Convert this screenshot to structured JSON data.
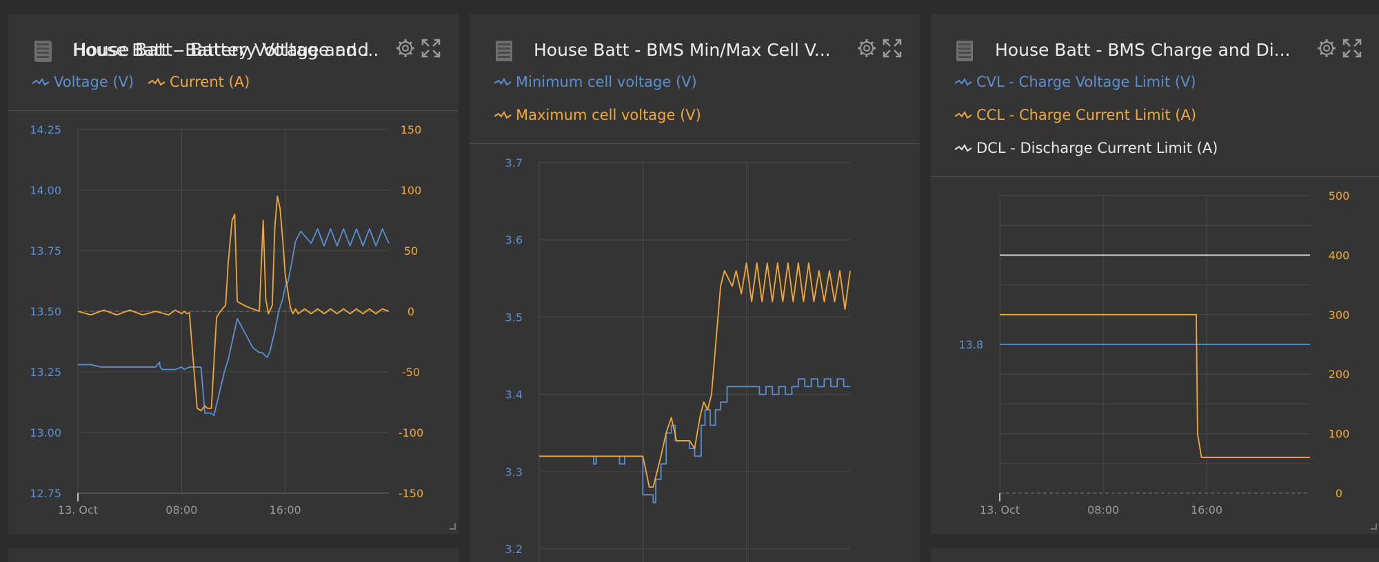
{
  "colors": {
    "blue": "#5b8fd1",
    "orange": "#f0a93a",
    "white": "#e8e8e8",
    "grid": "#4a4a4a",
    "axis_text": "#9a9a9a"
  },
  "panels": [
    {
      "title": "House Batt - Battery Voltage and ...",
      "icon": "battery-monitor-icon",
      "legend": [
        {
          "label": "Voltage (V)",
          "color": "#5b8fd1"
        },
        {
          "label": "Current (A)",
          "color": "#f0a93a"
        }
      ],
      "xticks": [
        "13. Oct",
        "08:00",
        "16:00"
      ],
      "yticks_left": [
        "14.25",
        "14.00",
        "13.75",
        "13.50",
        "13.25",
        "13.00",
        "12.75"
      ],
      "yticks_right": [
        "150",
        "100",
        "50",
        "0",
        "-50",
        "-100",
        "-150"
      ]
    },
    {
      "title": "House Batt - BMS Min/Max Cell V...",
      "icon": "battery-monitor-icon",
      "legend": [
        {
          "label": "Minimum cell voltage (V)",
          "color": "#5b8fd1"
        },
        {
          "label": "Maximum cell voltage (V)",
          "color": "#f0a93a"
        }
      ],
      "yticks_left": [
        "3.7",
        "3.6",
        "3.5",
        "3.4",
        "3.3",
        "3.2"
      ]
    },
    {
      "title": "House Batt - BMS Charge and Di...",
      "icon": "battery-monitor-icon",
      "legend": [
        {
          "label": "CVL - Charge Voltage Limit (V)",
          "color": "#5b8fd1"
        },
        {
          "label": "CCL - Charge Current Limit (A)",
          "color": "#f0a93a"
        },
        {
          "label": "DCL - Discharge Current Limit (A)",
          "color": "#e8e8e8"
        }
      ],
      "xticks": [
        "13. Oct",
        "08:00",
        "16:00"
      ],
      "yticks_left": [
        "13.8"
      ],
      "yticks_right": [
        "500",
        "400",
        "300",
        "200",
        "100",
        "0"
      ]
    }
  ],
  "chart_data": [
    {
      "type": "line",
      "x_unit": "hours",
      "xlim": [
        0,
        24
      ],
      "ylim_left": [
        12.75,
        14.25
      ],
      "ylim_right": [
        -150,
        150
      ],
      "series": [
        {
          "name": "Voltage (V)",
          "axis": "left",
          "color": "#5b8fd1",
          "x": [
            0,
            1,
            1.8,
            2,
            6,
            6.3,
            6.35,
            6.5,
            7.5,
            8,
            8.2,
            8.6,
            9.5,
            9.8,
            10,
            10.3,
            10.5,
            11.3,
            11.6,
            12.3,
            13.5,
            14,
            14.2,
            14.6,
            14.8,
            15.2,
            15.5,
            15.8,
            16,
            16.2,
            16.5,
            16.8,
            17.2,
            18,
            18.5,
            19,
            19.5,
            20,
            20.5,
            21,
            21.5,
            22,
            22.5,
            23,
            23.5,
            24
          ],
          "y": [
            13.28,
            13.28,
            13.27,
            13.27,
            13.27,
            13.29,
            13.27,
            13.26,
            13.26,
            13.27,
            13.26,
            13.27,
            13.27,
            13.08,
            13.08,
            13.08,
            13.07,
            13.25,
            13.3,
            13.47,
            13.35,
            13.33,
            13.33,
            13.31,
            13.33,
            13.42,
            13.5,
            13.55,
            13.6,
            13.62,
            13.7,
            13.79,
            13.83,
            13.78,
            13.84,
            13.77,
            13.84,
            13.77,
            13.84,
            13.77,
            13.84,
            13.77,
            13.84,
            13.77,
            13.84,
            13.78
          ]
        },
        {
          "name": "Current (A)",
          "axis": "right",
          "color": "#f0a93a",
          "x": [
            0,
            1,
            2,
            3,
            4,
            5,
            6,
            7,
            7.5,
            8,
            8.2,
            8.4,
            8.6,
            9.2,
            9.5,
            9.8,
            10,
            10.3,
            10.7,
            11,
            11.4,
            11.6,
            11.9,
            12.1,
            12.3,
            13,
            13.5,
            14,
            14.3,
            14.5,
            14.7,
            15,
            15.2,
            15.4,
            15.6,
            15.8,
            16,
            16.4,
            16.6,
            16.8,
            17,
            17.5,
            18,
            18.5,
            19,
            19.5,
            20,
            20.5,
            21,
            21.5,
            22,
            22.5,
            23,
            23.5,
            24
          ],
          "y": [
            0,
            -3,
            1,
            -3,
            1,
            -3,
            0,
            -3,
            1,
            -2,
            0,
            -2,
            -1,
            -80,
            -82,
            -78,
            -80,
            -80,
            -5,
            0,
            5,
            40,
            75,
            80,
            8,
            4,
            2,
            0,
            75,
            10,
            -2,
            5,
            70,
            95,
            85,
            60,
            30,
            3,
            -2,
            2,
            -2,
            2,
            -2,
            2,
            -2,
            2,
            -2,
            2,
            -2,
            2,
            -2,
            2,
            -2,
            2,
            0
          ]
        }
      ]
    },
    {
      "type": "line",
      "x_unit": "hours",
      "xlim": [
        0,
        24
      ],
      "ylim": [
        3.2,
        3.7
      ],
      "series": [
        {
          "name": "Minimum cell voltage (V)",
          "color": "#5b8fd1",
          "x": [
            0,
            4,
            4.2,
            4.4,
            6,
            6.2,
            6.6,
            7.5,
            8,
            8.5,
            8.8,
            9,
            9.4,
            9.8,
            10.2,
            10.5,
            10.8,
            11.2,
            11.6,
            12,
            12.5,
            12.8,
            13.2,
            13.6,
            14,
            14.5,
            15,
            15.5,
            16,
            16.5,
            17,
            17.5,
            18,
            18.5,
            19,
            19.5,
            20,
            20.5,
            21,
            21.5,
            22,
            22.5,
            23,
            23.5,
            24
          ],
          "y": [
            3.32,
            3.32,
            3.31,
            3.32,
            3.32,
            3.31,
            3.32,
            3.32,
            3.27,
            3.27,
            3.26,
            3.29,
            3.31,
            3.35,
            3.36,
            3.34,
            3.34,
            3.34,
            3.33,
            3.32,
            3.36,
            3.38,
            3.36,
            3.38,
            3.39,
            3.41,
            3.41,
            3.41,
            3.41,
            3.41,
            3.4,
            3.41,
            3.4,
            3.41,
            3.4,
            3.41,
            3.42,
            3.41,
            3.42,
            3.41,
            3.42,
            3.41,
            3.42,
            3.41,
            3.41
          ]
        },
        {
          "name": "Maximum cell voltage (V)",
          "color": "#f0a93a",
          "x": [
            0,
            4,
            6,
            8,
            8.5,
            8.8,
            9.1,
            9.4,
            9.8,
            10.2,
            10.6,
            11,
            11.6,
            12,
            12.4,
            12.7,
            13,
            13.3,
            13.6,
            14,
            14.3,
            14.6,
            14.9,
            15.2,
            15.6,
            16,
            16.4,
            16.8,
            17.2,
            17.6,
            18,
            18.4,
            18.8,
            19.2,
            19.6,
            20,
            20.4,
            20.8,
            21.2,
            21.6,
            22,
            22.4,
            22.8,
            23.2,
            23.6,
            24
          ],
          "y": [
            3.32,
            3.32,
            3.32,
            3.32,
            3.28,
            3.28,
            3.3,
            3.32,
            3.35,
            3.37,
            3.34,
            3.34,
            3.34,
            3.33,
            3.37,
            3.39,
            3.38,
            3.4,
            3.46,
            3.54,
            3.56,
            3.55,
            3.54,
            3.56,
            3.53,
            3.57,
            3.52,
            3.57,
            3.52,
            3.57,
            3.52,
            3.57,
            3.52,
            3.57,
            3.52,
            3.57,
            3.52,
            3.57,
            3.52,
            3.56,
            3.52,
            3.56,
            3.52,
            3.56,
            3.51,
            3.56
          ]
        }
      ]
    },
    {
      "type": "line",
      "x_unit": "hours",
      "xlim": [
        0,
        24
      ],
      "ylim_right": [
        0,
        500
      ],
      "series": [
        {
          "name": "CVL - Charge Voltage Limit (V)",
          "axis": "left",
          "color": "#5b8fd1",
          "x": [
            0,
            24
          ],
          "y": [
            13.8,
            13.8
          ]
        },
        {
          "name": "CCL - Charge Current Limit (A)",
          "axis": "right",
          "color": "#f0a93a",
          "x": [
            0,
            15.2,
            15.3,
            15.6,
            24
          ],
          "y": [
            300,
            300,
            100,
            60,
            60
          ]
        },
        {
          "name": "DCL - Discharge Current Limit (A)",
          "axis": "right",
          "color": "#e8e8e8",
          "x": [
            0,
            24
          ],
          "y": [
            400,
            400
          ]
        }
      ]
    }
  ]
}
